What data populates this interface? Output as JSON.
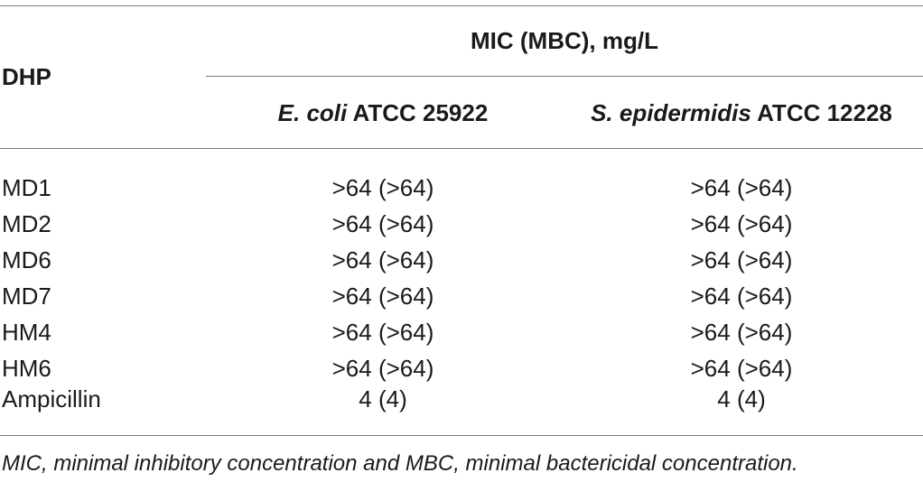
{
  "table": {
    "row_header": "DHP",
    "group_header": "MIC (MBC), mg/L",
    "columns": [
      {
        "italic_part": "E. coli",
        "rest": " ATCC 25922"
      },
      {
        "italic_part": "S. epidermidis",
        "rest": " ATCC 12228"
      }
    ],
    "rows": [
      {
        "name": "MD1",
        "values": [
          ">64 (>64)",
          ">64 (>64)"
        ]
      },
      {
        "name": "MD2",
        "values": [
          ">64 (>64)",
          ">64 (>64)"
        ]
      },
      {
        "name": "MD6",
        "values": [
          ">64 (>64)",
          ">64 (>64)"
        ]
      },
      {
        "name": "MD7",
        "values": [
          ">64 (>64)",
          ">64 (>64)"
        ]
      },
      {
        "name": "HM4",
        "values": [
          ">64 (>64)",
          ">64 (>64)"
        ]
      },
      {
        "name": "HM6",
        "values": [
          ">64 (>64)",
          ">64 (>64)"
        ]
      },
      {
        "name": "Ampicillin",
        "values": [
          "4 (4)",
          "4 (4)"
        ]
      }
    ]
  },
  "footnote": "MIC, minimal inhibitory concentration and MBC, minimal bactericidal concentration."
}
